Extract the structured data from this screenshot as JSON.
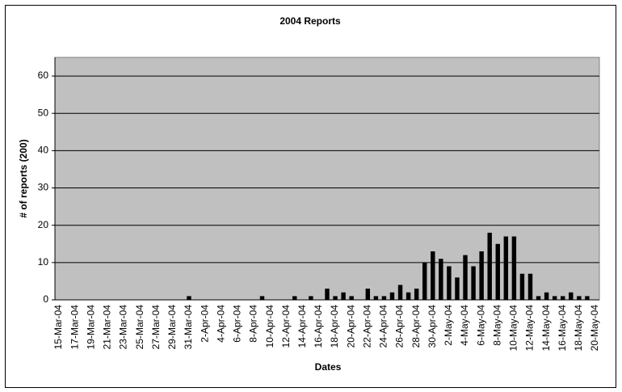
{
  "chart_data": {
    "type": "bar",
    "title": "2004 Reports",
    "x_label": "Dates",
    "y_label": "# of reports (200)",
    "categories": [
      "15-Mar-04",
      null,
      "17-Mar-04",
      null,
      "19-Mar-04",
      null,
      "21-Mar-04",
      null,
      "23-Mar-04",
      null,
      "25-Mar-04",
      null,
      "27-Mar-04",
      null,
      "29-Mar-04",
      null,
      "31-Mar-04",
      null,
      "2-Apr-04",
      null,
      "4-Apr-04",
      null,
      "6-Apr-04",
      null,
      "8-Apr-04",
      null,
      "10-Apr-04",
      null,
      "12-Apr-04",
      null,
      "14-Apr-04",
      null,
      "16-Apr-04",
      null,
      "18-Apr-04",
      null,
      "20-Apr-04",
      null,
      "22-Apr-04",
      null,
      "24-Apr-04",
      null,
      "26-Apr-04",
      null,
      "28-Apr-04",
      null,
      "30-Apr-04",
      null,
      "2-May-04",
      null,
      "4-May-04",
      null,
      "6-May-04",
      null,
      "8-May-04",
      null,
      "10-May-04",
      null,
      "12-May-04",
      null,
      "14-May-04",
      null,
      "16-May-04",
      null,
      "18-May-04",
      null,
      "20-May-04"
    ],
    "values": [
      0,
      0,
      0,
      0,
      0,
      0,
      0,
      0,
      0,
      0,
      0,
      0,
      0,
      0,
      0,
      0,
      1,
      0,
      0,
      0,
      0,
      0,
      0,
      0,
      0,
      1,
      0,
      0,
      0,
      1,
      0,
      1,
      0,
      3,
      1,
      2,
      1,
      0,
      3,
      1,
      1,
      2,
      4,
      2,
      3,
      10,
      13,
      11,
      9,
      6,
      12,
      9,
      13,
      18,
      15,
      17,
      17,
      7,
      7,
      1,
      2,
      1,
      1,
      2,
      1,
      1,
      0
    ],
    "color": "#000000",
    "background": "#c0c0c0",
    "ylim": [
      0,
      65
    ],
    "yticks": [
      0,
      10,
      20,
      30,
      40,
      50,
      60
    ],
    "grid": true
  }
}
